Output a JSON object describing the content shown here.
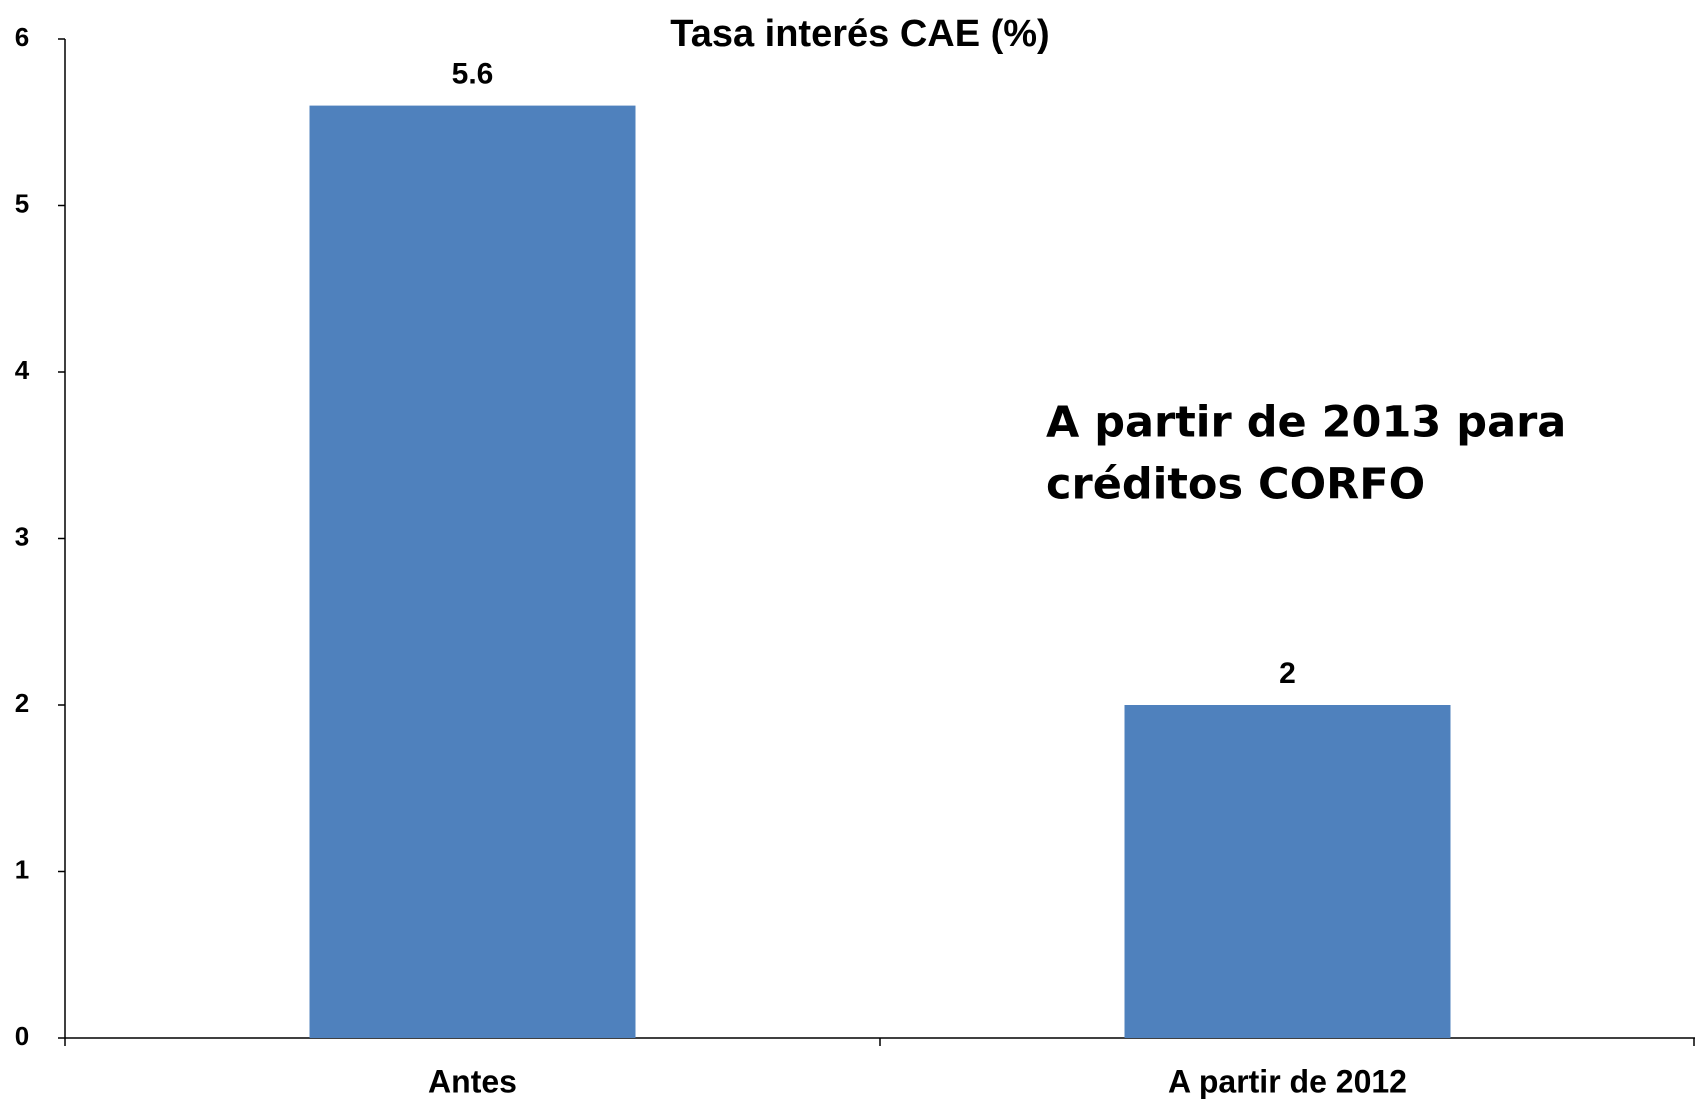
{
  "chart_data": {
    "type": "bar",
    "title": "Tasa interés CAE (%)",
    "categories": [
      "Antes",
      "A partir de 2012"
    ],
    "values": [
      5.6,
      2
    ],
    "color": "#4f81bd",
    "ylim": [
      0,
      6
    ],
    "yticks": [
      0,
      1,
      2,
      3,
      4,
      5,
      6
    ],
    "grid": false,
    "annotation": [
      "A partir de 2013 para",
      "créditos CORFO"
    ]
  }
}
